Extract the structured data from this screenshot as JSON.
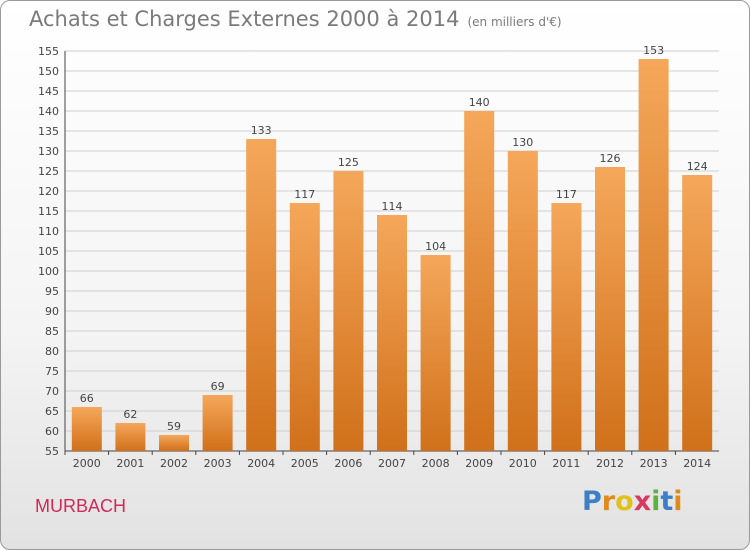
{
  "title": "Achats et Charges Externes 2000 à 2014",
  "subtitle": "(en milliers d'€)",
  "place": "MURBACH",
  "logo": [
    "P",
    "r",
    "o",
    "x",
    "i",
    "t",
    "i"
  ],
  "colors": {
    "bar_light": "#f5a75a",
    "bar_dark": "#d0701a",
    "grid": "#cfcfcf",
    "place": "#d02a5a"
  },
  "chart_data": {
    "type": "bar",
    "title": "Achats et Charges Externes 2000 à 2014",
    "subtitle": "(en milliers d'€)",
    "xlabel": "",
    "ylabel": "",
    "categories": [
      "2000",
      "2001",
      "2002",
      "2003",
      "2004",
      "2005",
      "2006",
      "2007",
      "2008",
      "2009",
      "2010",
      "2011",
      "2012",
      "2013",
      "2014"
    ],
    "values": [
      66,
      62,
      59,
      69,
      133,
      117,
      125,
      114,
      104,
      140,
      130,
      117,
      126,
      153,
      124
    ],
    "ylim": [
      55,
      155
    ],
    "yticks": [
      55,
      60,
      65,
      70,
      75,
      80,
      85,
      90,
      95,
      100,
      105,
      110,
      115,
      120,
      125,
      130,
      135,
      140,
      145,
      150,
      155
    ],
    "grid": true
  }
}
